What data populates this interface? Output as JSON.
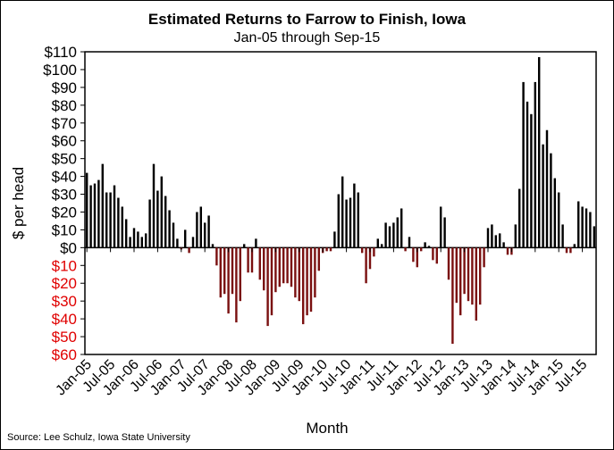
{
  "chart_data": {
    "type": "bar",
    "title": "Estimated Returns to Farrow to Finish, Iowa",
    "subtitle": "Jan-05 through Sep-15",
    "xlabel": "Month",
    "ylabel": "$ per head",
    "source": "Source: Lee Schulz, Iowa State University",
    "ylim": [
      -60,
      110
    ],
    "y_ticks": [
      110,
      100,
      90,
      80,
      70,
      60,
      50,
      40,
      30,
      20,
      10,
      0,
      -10,
      -20,
      -30,
      -40,
      -50,
      -60
    ],
    "y_tick_labels": [
      "$110",
      "$100",
      "$90",
      "$80",
      "$70",
      "$60",
      "$50",
      "$40",
      "$30",
      "$20",
      "$10",
      "$0",
      "$10",
      "$20",
      "$30",
      "$40",
      "$50",
      "$60"
    ],
    "x_tick_labels": [
      "Jan-05",
      "Jul-05",
      "Jan-06",
      "Jul-06",
      "Jan-07",
      "Jul-07",
      "Jan-08",
      "Jul-08",
      "Jan-09",
      "Jul-09",
      "Jan-10",
      "Jul-10",
      "Jan-11",
      "Jul-11",
      "Jan-12",
      "Jul-12",
      "Jan-13",
      "Jul-13",
      "Jan-14",
      "Jul-14",
      "Jan-15",
      "Jul-15"
    ],
    "grid": false,
    "colors": {
      "positive": "#000000",
      "negative": "#7a1010",
      "negative_label": "#e00000"
    },
    "start_month": "Jan-05",
    "values": [
      42,
      35,
      36,
      38,
      47,
      31,
      31,
      35,
      28,
      23,
      16,
      6,
      11,
      9,
      6,
      8,
      27,
      47,
      32,
      40,
      29,
      21,
      14,
      5,
      -1,
      10,
      -3,
      6,
      20,
      23,
      14,
      18,
      2,
      -10,
      -28,
      -26,
      -37,
      -26,
      -42,
      -30,
      2,
      -14,
      -14,
      5,
      -18,
      -24,
      -44,
      -38,
      -25,
      -22,
      -20,
      -20,
      -22,
      -28,
      -30,
      -43,
      -38,
      -36,
      -28,
      -13,
      -3,
      -2,
      -2,
      9,
      30,
      40,
      27,
      28,
      36,
      31,
      -3,
      -20,
      -12,
      -5,
      5,
      2,
      14,
      12,
      14,
      17,
      22,
      -2,
      6,
      -8,
      -11,
      -2,
      3,
      1,
      -7,
      -9,
      23,
      17,
      -18,
      -54,
      -31,
      -38,
      -26,
      -30,
      -32,
      -41,
      -32,
      -11,
      11,
      13,
      7,
      8,
      3,
      -4,
      -4,
      13,
      33,
      93,
      82,
      75,
      93,
      107,
      58,
      66,
      53,
      39,
      31,
      13,
      -3,
      -3,
      2,
      26,
      23,
      22,
      20,
      12
    ]
  }
}
